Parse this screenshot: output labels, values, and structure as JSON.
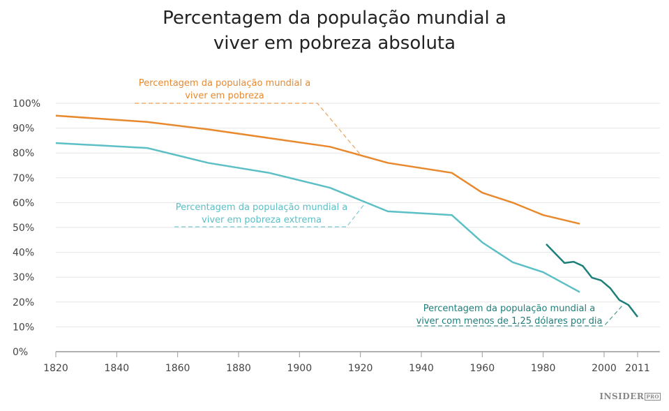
{
  "chart_data": {
    "type": "line",
    "title_lines": [
      "Percentagem da população mundial a",
      "viver em pobreza absoluta"
    ],
    "xlim": [
      1820,
      2011
    ],
    "ylim": [
      0,
      100
    ],
    "x_ticks": [
      1820,
      1840,
      1860,
      1880,
      1900,
      1920,
      1940,
      1960,
      1980,
      2000,
      2011
    ],
    "y_ticks": [
      "0%",
      "10%",
      "20%",
      "30%",
      "40%",
      "50%",
      "60%",
      "70%",
      "80%",
      "90%",
      "100%"
    ],
    "grid": true,
    "series": [
      {
        "name_lines": [
          "Percentagem da população mundial a",
          "viver em pobreza"
        ],
        "color": "#e8892e",
        "points": [
          [
            1820,
            95
          ],
          [
            1850,
            92.5
          ],
          [
            1870,
            89.5
          ],
          [
            1890,
            86
          ],
          [
            1910,
            82.5
          ],
          [
            1929,
            76
          ],
          [
            1950,
            72
          ],
          [
            1960,
            64
          ],
          [
            1970,
            60
          ],
          [
            1980,
            55
          ],
          [
            1992,
            51.5
          ]
        ]
      },
      {
        "name_lines": [
          "Percentagem da população mundial a",
          "viver em pobreza extrema"
        ],
        "color": "#5bbfc5",
        "points": [
          [
            1820,
            84
          ],
          [
            1850,
            82
          ],
          [
            1870,
            76
          ],
          [
            1890,
            72
          ],
          [
            1910,
            66
          ],
          [
            1929,
            56.5
          ],
          [
            1950,
            55
          ],
          [
            1960,
            44
          ],
          [
            1970,
            36
          ],
          [
            1980,
            32
          ],
          [
            1992,
            24
          ]
        ]
      },
      {
        "name_lines": [
          "Percentagem da população mundial a",
          "viver com menos de 1,25 dólares por dia"
        ],
        "color": "#1e7f7a",
        "points": [
          [
            1981,
            43.3
          ],
          [
            1987,
            35.7
          ],
          [
            1990,
            36.2
          ],
          [
            1993,
            34.5
          ],
          [
            1996,
            29.8
          ],
          [
            1999,
            28.7
          ],
          [
            2002,
            25.6
          ],
          [
            2005,
            20.8
          ],
          [
            2008,
            18.8
          ],
          [
            2011,
            14
          ]
        ]
      }
    ]
  },
  "brand": {
    "name": "INSIDER",
    "suffix": "PRO"
  }
}
